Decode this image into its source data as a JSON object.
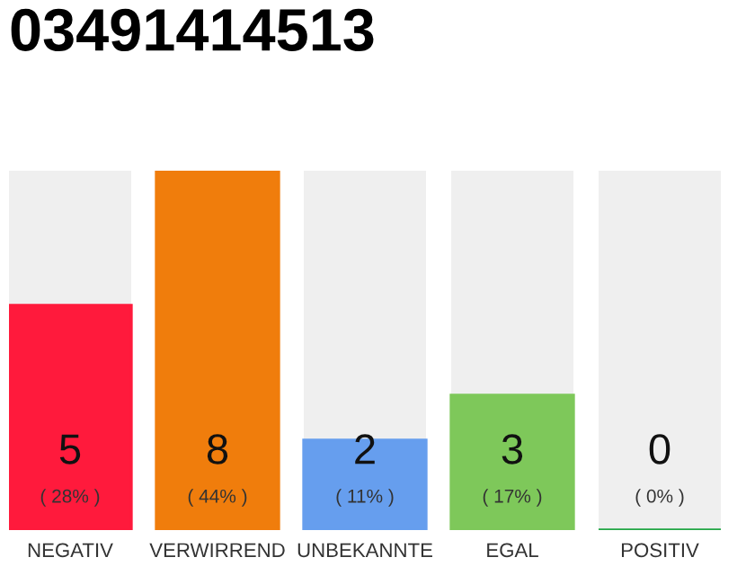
{
  "chart_data": {
    "type": "bar",
    "title": "03491414513",
    "categories": [
      "NEGATIV",
      "VERWIRREND",
      "UNBEKANNTE",
      "EGAL",
      "POSITIV"
    ],
    "values": [
      5,
      8,
      2,
      3,
      0
    ],
    "colors": [
      "#ff1a3c",
      "#f07d0c",
      "#669eee",
      "#7ec85a",
      "#22a745"
    ],
    "value_labels": [
      "5\n( 28% )",
      "8\n( 44% )",
      "2\n( 11% )",
      "3\n( 17% )",
      "0\n( 0% )"
    ],
    "ylim": [
      0,
      8
    ],
    "tick_labels": "x",
    "grid": false,
    "legend": false
  }
}
